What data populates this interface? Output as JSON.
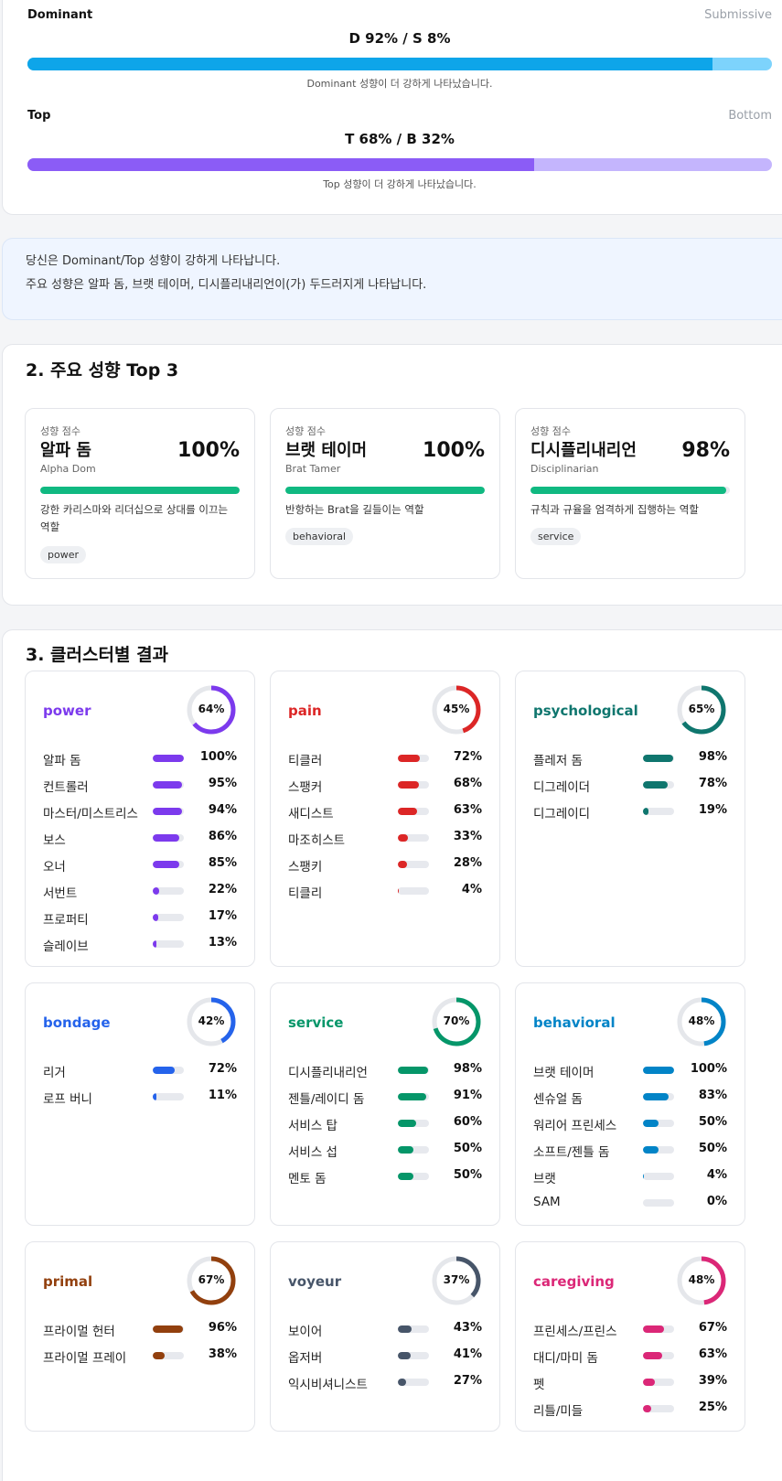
{
  "axes": [
    {
      "left": "Dominant",
      "right": "Submissive",
      "ratio": "D 92% / S 8%",
      "primary_pct": 92,
      "note": "Dominant 성향이 더 강하게 나타났습니다.",
      "color": "#0ea5e9",
      "color_light": "#7dd3fc"
    },
    {
      "left": "Top",
      "right": "Bottom",
      "ratio": "T 68% / B 32%",
      "primary_pct": 68,
      "note": "Top 성향이 더 강하게 나타났습니다.",
      "color": "#8b5cf6",
      "color_light": "#c4b5fd"
    }
  ],
  "summary": {
    "line1": "당신은 Dominant/Top 성향이 강하게 나타납니다.",
    "line2": "주요 성향은 알파 돔, 브랫 테이머, 디시플리내리언이(가) 두드러지게 나타납니다."
  },
  "top3": {
    "title": "2. 주요 성향 Top 3",
    "cards": [
      {
        "label": "성향 점수",
        "name": "알파 돔",
        "eng": "Alpha Dom",
        "score": "100%",
        "value": 100,
        "desc": "강한 카리스마와 리더십으로 상대를 이끄는 역할",
        "tag": "power"
      },
      {
        "label": "성향 점수",
        "name": "브랫 테이머",
        "eng": "Brat Tamer",
        "score": "100%",
        "value": 100,
        "desc": "반항하는 Brat을 길들이는 역할",
        "tag": "behavioral"
      },
      {
        "label": "성향 점수",
        "name": "디시플리내리언",
        "eng": "Disciplinarian",
        "score": "98%",
        "value": 98,
        "desc": "규칙과 규율을 엄격하게 집행하는 역할",
        "tag": "service"
      }
    ]
  },
  "clusters": {
    "title": "3. 클러스터별 결과",
    "items": [
      {
        "name": "power",
        "pct": "64%",
        "value": 64,
        "color": "#7c3aed",
        "items": [
          {
            "label": "알파 돔",
            "pct": "100%",
            "value": 100
          },
          {
            "label": "컨트롤러",
            "pct": "95%",
            "value": 95
          },
          {
            "label": "마스터/미스트리스",
            "pct": "94%",
            "value": 94
          },
          {
            "label": "보스",
            "pct": "86%",
            "value": 86
          },
          {
            "label": "오너",
            "pct": "85%",
            "value": 85
          },
          {
            "label": "서번트",
            "pct": "22%",
            "value": 22
          },
          {
            "label": "프로퍼티",
            "pct": "17%",
            "value": 17
          },
          {
            "label": "슬레이브",
            "pct": "13%",
            "value": 13
          }
        ]
      },
      {
        "name": "pain",
        "pct": "45%",
        "value": 45,
        "color": "#dc2626",
        "items": [
          {
            "label": "티클러",
            "pct": "72%",
            "value": 72
          },
          {
            "label": "스팽커",
            "pct": "68%",
            "value": 68
          },
          {
            "label": "새디스트",
            "pct": "63%",
            "value": 63
          },
          {
            "label": "마조히스트",
            "pct": "33%",
            "value": 33
          },
          {
            "label": "스팽키",
            "pct": "28%",
            "value": 28
          },
          {
            "label": "티클리",
            "pct": "4%",
            "value": 4
          }
        ]
      },
      {
        "name": "psychological",
        "pct": "65%",
        "value": 65,
        "color": "#0f766e",
        "items": [
          {
            "label": "플레저 돔",
            "pct": "98%",
            "value": 98
          },
          {
            "label": "디그레이더",
            "pct": "78%",
            "value": 78
          },
          {
            "label": "디그레이디",
            "pct": "19%",
            "value": 19
          }
        ]
      },
      {
        "name": "bondage",
        "pct": "42%",
        "value": 42,
        "color": "#2563eb",
        "items": [
          {
            "label": "리거",
            "pct": "72%",
            "value": 72
          },
          {
            "label": "로프 버니",
            "pct": "11%",
            "value": 11
          }
        ]
      },
      {
        "name": "service",
        "pct": "70%",
        "value": 70,
        "color": "#059669",
        "items": [
          {
            "label": "디시플리내리언",
            "pct": "98%",
            "value": 98
          },
          {
            "label": "젠틀/레이디 돔",
            "pct": "91%",
            "value": 91
          },
          {
            "label": "서비스 탑",
            "pct": "60%",
            "value": 60
          },
          {
            "label": "서비스 섭",
            "pct": "50%",
            "value": 50
          },
          {
            "label": "멘토 돔",
            "pct": "50%",
            "value": 50
          }
        ]
      },
      {
        "name": "behavioral",
        "pct": "48%",
        "value": 48,
        "color": "#0284c7",
        "items": [
          {
            "label": "브랫 테이머",
            "pct": "100%",
            "value": 100
          },
          {
            "label": "센슈얼 돔",
            "pct": "83%",
            "value": 83
          },
          {
            "label": "워리어 프린세스",
            "pct": "50%",
            "value": 50
          },
          {
            "label": "소프트/젠틀 돔",
            "pct": "50%",
            "value": 50
          },
          {
            "label": "브랫",
            "pct": "4%",
            "value": 4
          },
          {
            "label": "SAM",
            "pct": "0%",
            "value": 0
          }
        ]
      },
      {
        "name": "primal",
        "pct": "67%",
        "value": 67,
        "color": "#92400e",
        "items": [
          {
            "label": "프라이멀 헌터",
            "pct": "96%",
            "value": 96
          },
          {
            "label": "프라이멀 프레이",
            "pct": "38%",
            "value": 38
          }
        ]
      },
      {
        "name": "voyeur",
        "pct": "37%",
        "value": 37,
        "color": "#475569",
        "items": [
          {
            "label": "보이어",
            "pct": "43%",
            "value": 43
          },
          {
            "label": "옵저버",
            "pct": "41%",
            "value": 41
          },
          {
            "label": "익시비셔니스트",
            "pct": "27%",
            "value": 27
          }
        ]
      },
      {
        "name": "caregiving",
        "pct": "48%",
        "value": 48,
        "color": "#db2777",
        "items": [
          {
            "label": "프린세스/프린스",
            "pct": "67%",
            "value": 67
          },
          {
            "label": "대디/마미 돔",
            "pct": "63%",
            "value": 63
          },
          {
            "label": "펫",
            "pct": "39%",
            "value": 39
          },
          {
            "label": "리틀/미들",
            "pct": "25%",
            "value": 25
          }
        ]
      }
    ]
  }
}
